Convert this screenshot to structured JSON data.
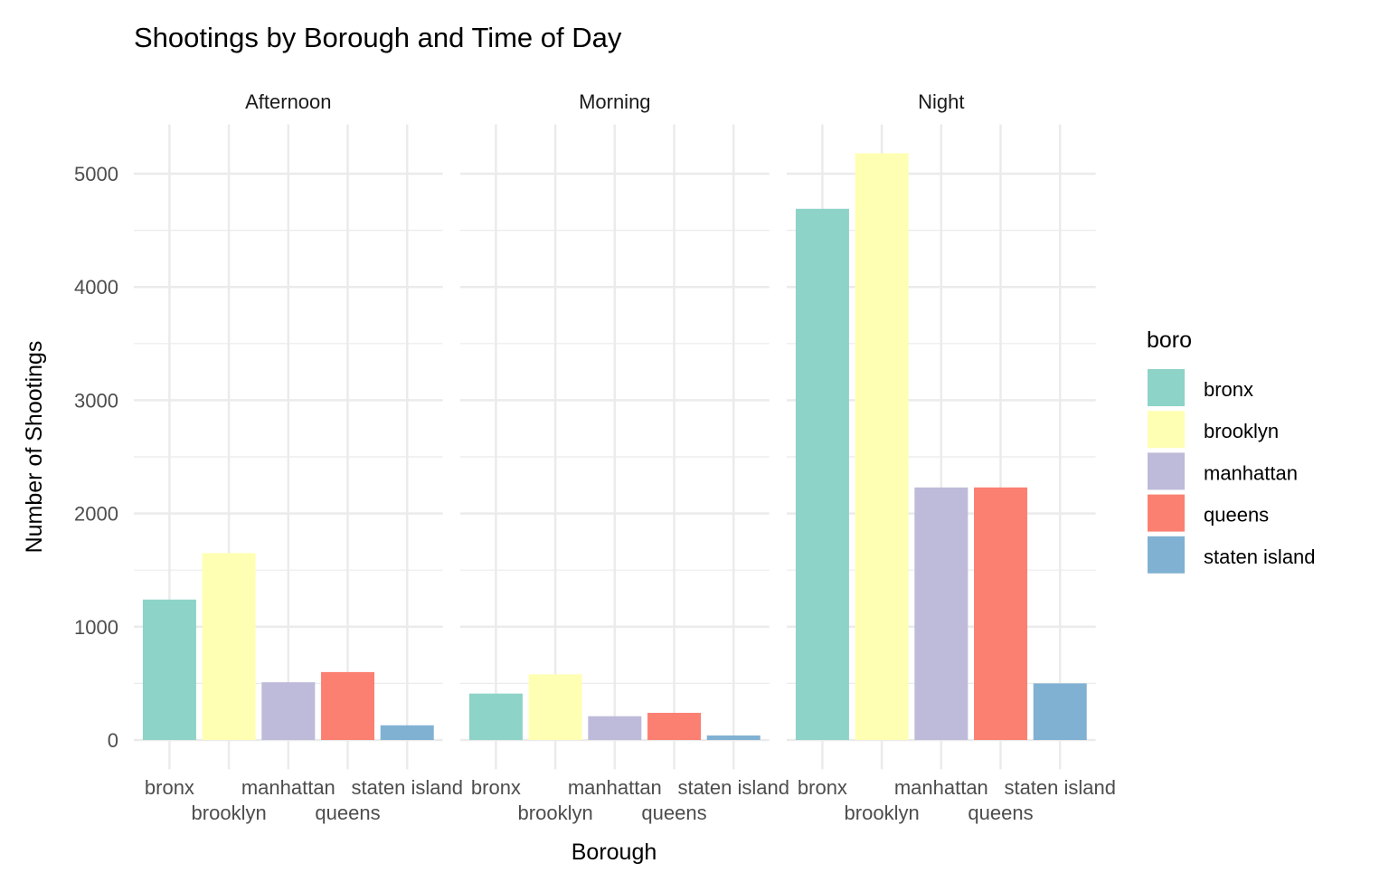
{
  "chart_data": {
    "type": "bar",
    "title": "Shootings by Borough and Time of Day",
    "xlabel": "Borough",
    "ylabel": "Number of Shootings",
    "ylim": [
      0,
      5435
    ],
    "yticks": [
      "0",
      "1000",
      "2000",
      "3000",
      "4000",
      "5000"
    ],
    "grid": true,
    "categories": [
      "bronx",
      "brooklyn",
      "manhattan",
      "queens",
      "staten island"
    ],
    "facets": [
      {
        "name": "Afternoon",
        "values": [
          1240,
          1650,
          510,
          600,
          130
        ]
      },
      {
        "name": "Morning",
        "values": [
          410,
          580,
          210,
          240,
          40
        ]
      },
      {
        "name": "Night",
        "values": [
          4690,
          5180,
          2230,
          2230,
          500
        ]
      }
    ],
    "legend": {
      "title": "boro",
      "placement": "right",
      "items": [
        "bronx",
        "brooklyn",
        "manhattan",
        "queens",
        "staten island"
      ]
    },
    "colors": [
      "#8DD3C7",
      "#FFFFB3",
      "#BEBADA",
      "#FB8072",
      "#80B1D3"
    ]
  }
}
